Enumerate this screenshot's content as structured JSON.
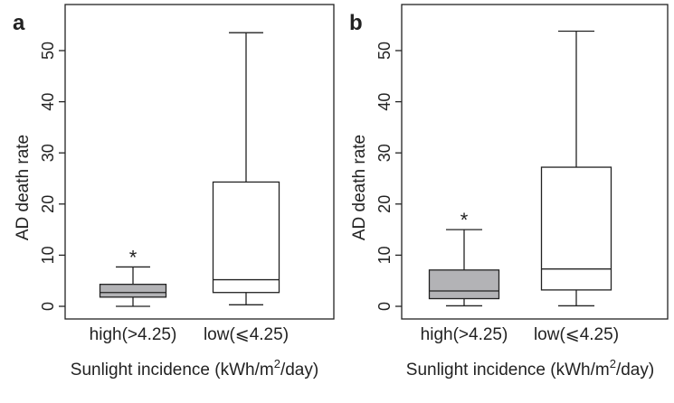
{
  "colors": {
    "high_fill": "#b3b3b6",
    "low_fill": "#ffffff",
    "stroke": "#222222"
  },
  "chart_data": [
    {
      "panel": "a",
      "type": "boxplot",
      "ylabel": "AD death rate",
      "xlabel": "Sunlight incidence (kWh/m²/day)",
      "ylim": [
        0,
        55
      ],
      "yticks": [
        0,
        10,
        20,
        30,
        40,
        50
      ],
      "grid": false,
      "categories": [
        "high(>4.25)",
        "low(⩽4.25)"
      ],
      "boxes": [
        {
          "category": "high(>4.25)",
          "min": 0,
          "q1": 1.8,
          "median": 2.7,
          "q3": 4.3,
          "max": 7.7,
          "annotation": "*"
        },
        {
          "category": "low(⩽4.25)",
          "min": 0.3,
          "q1": 2.7,
          "median": 5.2,
          "q3": 24.3,
          "max": 53.5,
          "annotation": ""
        }
      ]
    },
    {
      "panel": "b",
      "type": "boxplot",
      "ylabel": "AD death rate",
      "xlabel": "Sunlight incidence (kWh/m²/day)",
      "ylim": [
        0,
        55
      ],
      "yticks": [
        0,
        10,
        20,
        30,
        40,
        50
      ],
      "grid": false,
      "categories": [
        "high(>4.25)",
        "low(⩽4.25)"
      ],
      "boxes": [
        {
          "category": "high(>4.25)",
          "min": 0.1,
          "q1": 1.5,
          "median": 3.0,
          "q3": 7.1,
          "max": 15.0,
          "annotation": "*"
        },
        {
          "category": "low(⩽4.25)",
          "min": 0.1,
          "q1": 3.2,
          "median": 7.3,
          "q3": 27.2,
          "max": 53.8,
          "annotation": ""
        }
      ]
    }
  ]
}
